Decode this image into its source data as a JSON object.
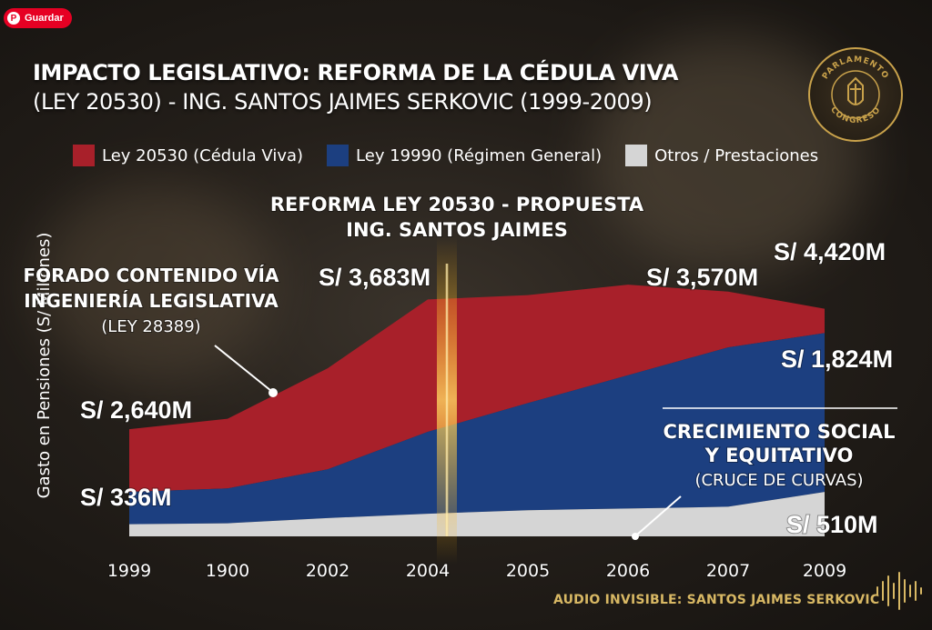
{
  "save_button": {
    "label": "Guardar",
    "icon": "pinterest-icon"
  },
  "title": {
    "line1": "IMPACTO LEGISLATIVO: REFORMA DE LA CÉDULA VIVA",
    "line2": "(LEY 20530) - ING. SANTOS JAIMES SERKOVIC (1999-2009)"
  },
  "seal": {
    "top_text": "PARLAMENTO",
    "bottom_text": "CONGRESO",
    "icon": "congress-seal-icon",
    "color": "#c9a24b"
  },
  "colors": {
    "red": "#a8202a",
    "blue": "#1c3f80",
    "gray": "#d5d5d5",
    "gold": "#d8b864"
  },
  "chart_data": {
    "type": "area",
    "stacked": true,
    "title": "",
    "xlabel": "",
    "ylabel": "Gasto en Pensiones (S/ Millones)",
    "categories": [
      "1999",
      "1900",
      "2002",
      "2004",
      "2005",
      "2006",
      "2007",
      "2009"
    ],
    "legend_position": "top",
    "series": [
      {
        "name": "Otros / Prestaciones",
        "color": "#d5d5d5",
        "values": [
          140,
          150,
          210,
          260,
          300,
          320,
          340,
          510
        ]
      },
      {
        "name": "Ley 19990 (Régimen General)",
        "color": "#1c3f80",
        "values": [
          370,
          400,
          560,
          940,
          1230,
          1530,
          1830,
          1824
        ]
      },
      {
        "name": "Ley 20530 (Cédula Viva)",
        "color": "#a8202a",
        "values": [
          720,
          800,
          1160,
          1520,
          1240,
          1040,
          640,
          280
        ]
      }
    ],
    "value_labels": [
      {
        "text": "S/ 2,640M"
      },
      {
        "text": "S/ 336M"
      },
      {
        "text": "S/ 3,683M"
      },
      {
        "text": "S/ 3,570M"
      },
      {
        "text": "S/ 4,420M"
      },
      {
        "text": "S/ 1,824M"
      },
      {
        "text": "S/ 510M"
      }
    ],
    "annotations": {
      "reform": {
        "line1": "REFORMA LEY 20530 - PROPUESTA",
        "line2": "ING. SANTOS JAIMES"
      },
      "forado": {
        "line1": "FORADO CONTENIDO VÍA",
        "line2": "INGENIERÍA LEGISLATIVA",
        "line3": "(LEY 28389)"
      },
      "crecimiento": {
        "line1": "CRECIMIENTO SOCIAL",
        "line2": "Y EQUITATIVO",
        "line3": "(CRUCE DE CURVAS)"
      }
    }
  },
  "footer": {
    "text": "AUDIO INVISIBLE: SANTOS JAIMES SERKOVIC",
    "icon": "audio-waveform-icon"
  }
}
